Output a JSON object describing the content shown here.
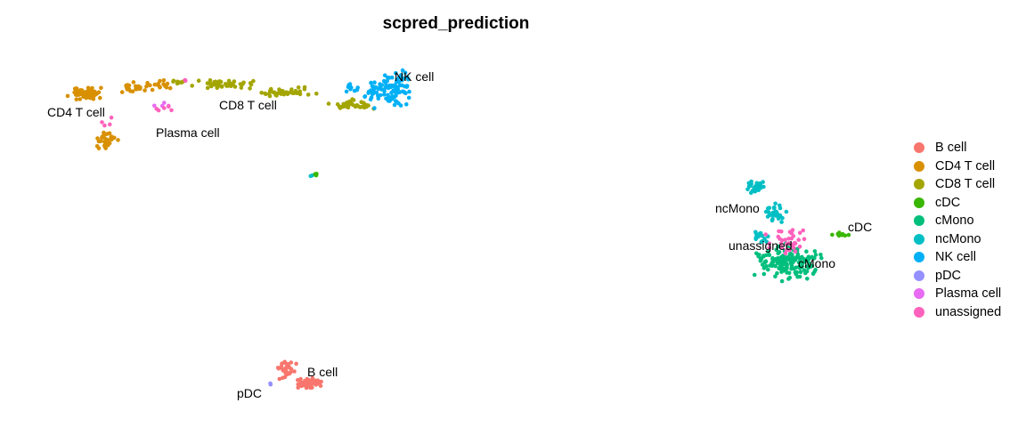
{
  "chart_data": {
    "type": "scatter",
    "title": "scpred_prediction",
    "xlabel": "",
    "ylabel": "",
    "grid": false,
    "axes_visible": false,
    "legend_position": "right",
    "categories": [
      "B cell",
      "CD4 T cell",
      "CD8 T cell",
      "cDC",
      "cMono",
      "ncMono",
      "NK cell",
      "pDC",
      "Plasma cell",
      "unassigned"
    ],
    "colors": [
      "#F8766D",
      "#D89000",
      "#A3A500",
      "#39B600",
      "#00BF7D",
      "#00BFC4",
      "#00B0F6",
      "#9590FF",
      "#E76BF3",
      "#FF62BC"
    ],
    "cluster_labels": [
      "CD4 T cell",
      "Plasma cell",
      "CD8 T cell",
      "NK cell",
      "ncMono",
      "cDC",
      "unassigned",
      "cMono",
      "B cell",
      "pDC"
    ],
    "clusters": [
      {
        "label": "B cell",
        "region": [
          [
            305,
            395
          ],
          [
            385,
            440
          ]
        ]
      },
      {
        "label": "CD4 T cell",
        "region": [
          [
            60,
            90
          ],
          [
            145,
            180
          ]
        ]
      },
      {
        "label": "CD8 T cell",
        "region": [
          [
            140,
            80
          ],
          [
            380,
            125
          ]
        ]
      },
      {
        "label": "cDC",
        "region": [
          [
            925,
            255
          ],
          [
            965,
            270
          ]
        ]
      },
      {
        "label": "cMono",
        "region": [
          [
            835,
            255
          ],
          [
            940,
            320
          ]
        ]
      },
      {
        "label": "ncMono",
        "region": [
          [
            828,
            195
          ],
          [
            900,
            265
          ]
        ]
      },
      {
        "label": "NK cell",
        "region": [
          [
            365,
            62
          ],
          [
            490,
            130
          ]
        ]
      },
      {
        "label": "pDC",
        "region": [
          [
            300,
            428
          ],
          [
            308,
            436
          ]
        ]
      },
      {
        "label": "Plasma cell",
        "region": [
          [
            115,
            85
          ],
          [
            210,
            160
          ]
        ]
      },
      {
        "label": "unassigned",
        "region": [
          [
            835,
            245
          ],
          [
            925,
            310
          ]
        ]
      }
    ]
  }
}
